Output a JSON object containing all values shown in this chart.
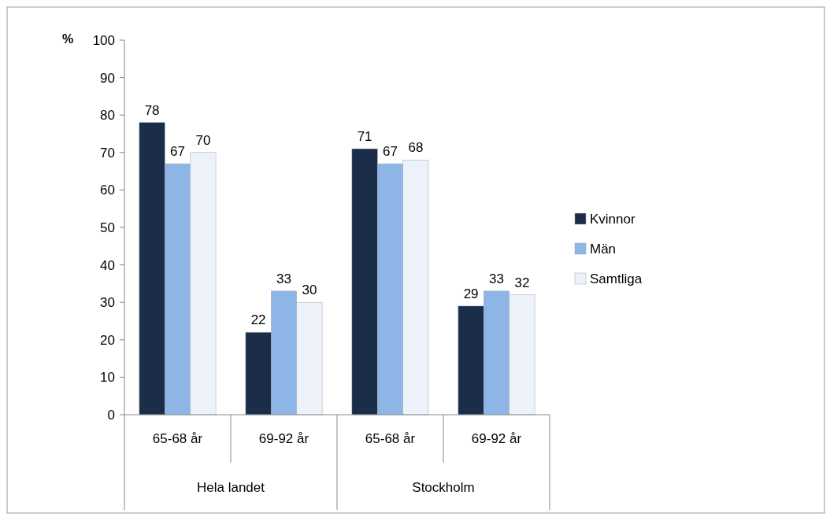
{
  "chart_data": {
    "type": "bar",
    "ylabel": "%",
    "categories": [
      "65-68 år",
      "69-92 år",
      "65-68 år",
      "69-92 år"
    ],
    "series": [
      {
        "name": "Kvinnor",
        "color": "#1b2d48",
        "values": [
          78,
          22,
          71,
          29
        ]
      },
      {
        "name": "Män",
        "color": "#8db6e6",
        "values": [
          67,
          33,
          67,
          33
        ]
      },
      {
        "name": "Samtliga",
        "color": "#edf2fa",
        "values": [
          70,
          30,
          68,
          32
        ]
      }
    ],
    "ylim": [
      0,
      100
    ],
    "yticks": [
      0,
      10,
      20,
      30,
      40,
      50,
      60,
      70,
      80,
      90,
      100
    ],
    "data_labels": true,
    "legend": "right",
    "grid": false,
    "annotations": [
      "Hela landet",
      "Stockholm"
    ]
  }
}
